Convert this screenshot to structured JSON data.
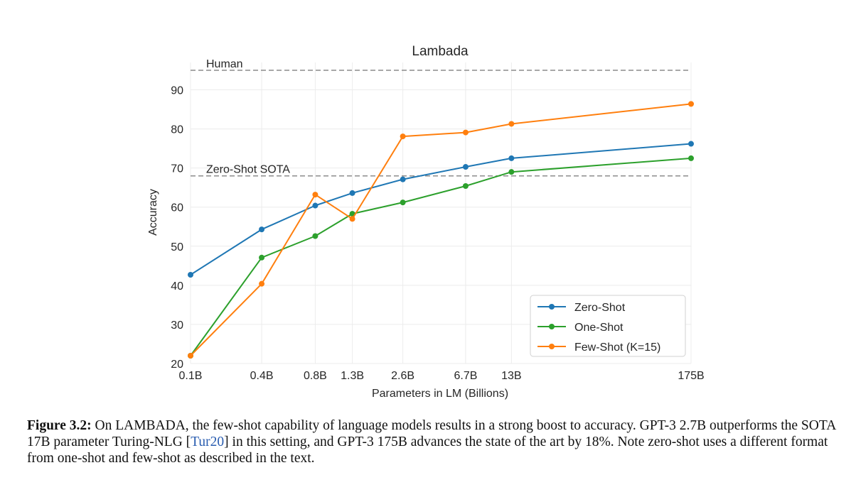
{
  "chart_data": {
    "type": "line",
    "title": "Lambada",
    "xlabel": "Parameters in LM (Billions)",
    "ylabel": "Accuracy",
    "x_tick_labels": [
      "0.1B",
      "0.4B",
      "0.8B",
      "1.3B",
      "2.6B",
      "6.7B",
      "13B",
      "175B"
    ],
    "x_values_billions": [
      0.125,
      0.35,
      0.76,
      1.3,
      2.7,
      6.7,
      13,
      175
    ],
    "x_scale": "log",
    "ylim": [
      20,
      97
    ],
    "y_ticks": [
      20,
      30,
      40,
      50,
      60,
      70,
      80,
      90
    ],
    "grid": true,
    "legend_position": "bottom-right",
    "reference_lines": [
      {
        "label": "Human",
        "value": 95
      },
      {
        "label": "Zero-Shot SOTA",
        "value": 68
      }
    ],
    "series": [
      {
        "name": "Zero-Shot",
        "color": "#1f77b4",
        "values": [
          42.7,
          54.3,
          60.4,
          63.6,
          67.1,
          70.3,
          72.5,
          76.2
        ]
      },
      {
        "name": "One-Shot",
        "color": "#2ca02c",
        "values": [
          22.0,
          47.1,
          52.6,
          58.3,
          61.2,
          65.4,
          69.0,
          72.5
        ]
      },
      {
        "name": "Few-Shot (K=15)",
        "color": "#ff7f0e",
        "values": [
          22.0,
          40.4,
          63.2,
          57.0,
          78.1,
          79.1,
          81.3,
          86.4
        ]
      }
    ]
  },
  "caption": {
    "label": "Figure 3.2:",
    "text_before": " On LAMBADA, the few-shot capability of language models results in a strong boost to accuracy. GPT-3 2.7B outperforms the SOTA 17B parameter Turing-NLG [",
    "citation": "Tur20",
    "text_after": "] in this setting, and GPT-3 175B advances the state of the art by 18%. Note zero-shot uses a different format from one-shot and few-shot as described in the text."
  }
}
